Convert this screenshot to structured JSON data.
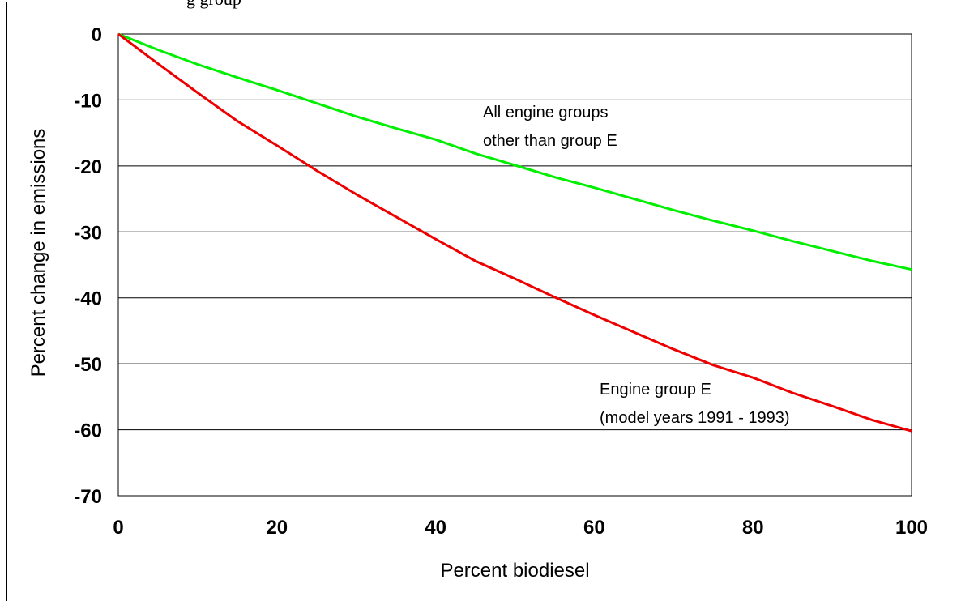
{
  "header": {
    "partial_title": "g          group"
  },
  "chart_data": {
    "type": "line",
    "xlabel": "Percent biodiesel",
    "ylabel": "Percent change in emissions",
    "xlim": [
      0,
      100
    ],
    "ylim": [
      -70,
      0
    ],
    "x_ticks": [
      "0",
      "20",
      "40",
      "60",
      "80",
      "100"
    ],
    "y_ticks": [
      "0",
      "-10",
      "-20",
      "-30",
      "-40",
      "-50",
      "-60",
      "-70"
    ],
    "grid": "horizontal",
    "series": [
      {
        "color": "#00ee00",
        "x": [
          0,
          5,
          10,
          15,
          20,
          25,
          30,
          35,
          40,
          45,
          50,
          55,
          60,
          65,
          70,
          75,
          80,
          85,
          90,
          95,
          100
        ],
        "values": [
          0,
          -2.4,
          -4.6,
          -6.6,
          -8.5,
          -10.5,
          -12.5,
          -14.3,
          -16.0,
          -18.1,
          -19.9,
          -21.7,
          -23.3,
          -25.0,
          -26.7,
          -28.3,
          -29.8,
          -31.4,
          -32.9,
          -34.4,
          -35.7
        ]
      },
      {
        "color": "#ee0000",
        "x": [
          0,
          5,
          10,
          15,
          20,
          25,
          30,
          35,
          40,
          45,
          50,
          55,
          60,
          65,
          70,
          75,
          80,
          85,
          90,
          95,
          100
        ],
        "values": [
          0,
          -4.5,
          -8.9,
          -13.2,
          -16.9,
          -20.7,
          -24.3,
          -27.7,
          -31.1,
          -34.4,
          -37.1,
          -39.9,
          -42.6,
          -45.2,
          -47.8,
          -50.2,
          -52.1,
          -54.4,
          -56.4,
          -58.5,
          -60.2
        ]
      }
    ],
    "annotations": [
      {
        "lines": [
          "All engine groups",
          "other than group E"
        ]
      },
      {
        "lines": [
          "Engine group E",
          "(model years 1991 - 1993)"
        ]
      }
    ]
  }
}
